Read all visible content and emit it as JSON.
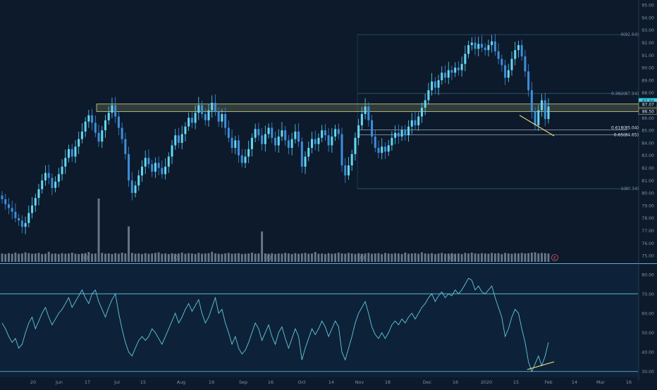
{
  "colors": {
    "background": "#0c1a2c",
    "rsi_panel_bg": "#0d2238",
    "candle": "#3d8dd9",
    "candle_bright": "#63d6f2",
    "volume": "#b7c9dd",
    "grid_line": "#5fb0d4",
    "zone_line": "#d7d783",
    "trend_line": "#e8d27a",
    "rsi_line": "#63c7e0",
    "axis_text": "#7f93a8",
    "axis_text_bright": "#d9e2ec",
    "price_badge": "#33d2ef",
    "earnings_marker": "#e05b6b"
  },
  "chart_data": [
    {
      "type": "candlestick",
      "x_ticks": [
        "20",
        "Jun",
        "17",
        "Jul",
        "15",
        "Aug",
        "19",
        "Sep",
        "16",
        "Oct",
        "14",
        "Nov",
        "18",
        "Dec",
        "16",
        "2020",
        "15",
        "Feb",
        "14",
        "Mar",
        "16"
      ],
      "y_ticks": [
        "95.00",
        "94.00",
        "93.00",
        "92.00",
        "91.00",
        "90.00",
        "89.00",
        "88.00",
        "87.00",
        "86.00",
        "85.00",
        "84.00",
        "83.00",
        "82.00",
        "81.00",
        "80.00",
        "79.00",
        "78.00",
        "77.00",
        "76.00",
        "75.00"
      ],
      "ylim": [
        74.5,
        95.4
      ],
      "price_badges": [
        {
          "label": "87.34",
          "value": 87.34
        },
        {
          "label": "87.07",
          "value": 87.07
        },
        {
          "label": "86.50",
          "value": 86.5
        }
      ],
      "resistance_zone": {
        "low": 86.5,
        "high": 87.1
      },
      "fibonacci": [
        {
          "label": "0(92.64)",
          "value": 92.64
        },
        {
          "label": "0.382(87.94)",
          "value": 87.94
        },
        {
          "label": "0.618(85.04)",
          "value": 85.04
        },
        {
          "label": "0.65(84.65)",
          "value": 84.65
        },
        {
          "label": "1(80.34)",
          "value": 80.34
        }
      ],
      "earnings_markers": [
        "E",
        "E",
        "E",
        "E",
        "E"
      ],
      "earnings_next": "E",
      "closes": [
        79.5,
        79.1,
        78.8,
        78.5,
        78.0,
        77.8,
        77.3,
        77.6,
        78.4,
        79.0,
        79.6,
        80.3,
        81.0,
        81.6,
        81.2,
        80.4,
        80.9,
        81.5,
        82.1,
        82.8,
        83.5,
        82.9,
        83.7,
        84.3,
        84.9,
        85.7,
        86.2,
        85.6,
        84.8,
        84.1,
        85.0,
        85.8,
        86.4,
        87.0,
        86.1,
        85.2,
        84.3,
        83.1,
        81.0,
        80.0,
        80.6,
        81.4,
        82.1,
        82.8,
        82.3,
        81.7,
        82.4,
        82.0,
        81.5,
        82.1,
        82.9,
        83.8,
        84.6,
        84.0,
        84.7,
        85.3,
        86.0,
        85.6,
        86.4,
        87.0,
        86.3,
        85.8,
        86.6,
        87.2,
        86.5,
        85.7,
        86.3,
        85.2,
        84.4,
        83.6,
        84.2,
        83.0,
        82.4,
        82.9,
        83.5,
        84.4,
        85.1,
        84.6,
        83.9,
        84.7,
        85.2,
        84.4,
        83.8,
        84.5,
        85.0,
        84.2,
        83.6,
        84.3,
        84.9,
        84.1,
        82.1,
        82.9,
        83.6,
        84.3,
        83.9,
        84.4,
        85.0,
        84.6,
        83.8,
        84.5,
        85.1,
        84.7,
        82.2,
        81.4,
        82.2,
        83.1,
        84.4,
        85.4,
        86.3,
        86.9,
        85.8,
        84.5,
        83.6,
        83.2,
        83.7,
        83.3,
        83.8,
        84.4,
        84.8,
        84.5,
        85.0,
        84.6,
        85.3,
        85.8,
        85.4,
        86.1,
        86.8,
        87.4,
        88.2,
        88.9,
        88.4,
        89.0,
        89.6,
        89.2,
        89.8,
        89.6,
        90.0,
        89.8,
        90.3,
        91.1,
        91.8,
        92.0,
        91.5,
        91.9,
        91.6,
        91.4,
        91.8,
        92.1,
        91.3,
        90.7,
        90.2,
        89.2,
        89.8,
        90.7,
        91.4,
        91.8,
        90.9,
        89.7,
        88.2,
        86.5,
        85.4,
        86.6,
        87.4,
        85.9,
        86.9
      ],
      "volumes": [
        1.0,
        0.8,
        1.1,
        0.9,
        1.3,
        0.9,
        1.0,
        1.4,
        1.1,
        0.9,
        1.0,
        1.2,
        0.8,
        0.9,
        1.6,
        0.9,
        1.0,
        0.8,
        1.1,
        0.9,
        1.0,
        1.3,
        0.9,
        0.8,
        1.0,
        1.1,
        1.5,
        0.9,
        1.0,
        5.0,
        1.2,
        0.9,
        1.0,
        0.8,
        1.1,
        0.9,
        1.3,
        1.0,
        2.8,
        1.2,
        0.9,
        1.0,
        0.8,
        1.1,
        0.9,
        1.0,
        1.2,
        1.4,
        0.9,
        1.0,
        0.8,
        1.1,
        0.9,
        1.0,
        1.3,
        0.9,
        1.1,
        1.0,
        0.8,
        1.2,
        0.9,
        1.0,
        1.1,
        1.6,
        1.0,
        0.9,
        0.8,
        1.0,
        1.2,
        0.9,
        1.0,
        1.1,
        0.8,
        0.9,
        1.0,
        1.3,
        0.9,
        1.0,
        2.4,
        1.0,
        0.9,
        1.1,
        0.8,
        1.0,
        0.9,
        1.2,
        1.0,
        0.8,
        1.1,
        0.9,
        1.0,
        1.2,
        0.9,
        1.0,
        1.5,
        0.9,
        1.0,
        0.8,
        1.1,
        0.9,
        1.0,
        1.3,
        1.0,
        0.9,
        1.2,
        1.0,
        0.8,
        1.1,
        0.9,
        1.0,
        1.2,
        0.9,
        1.0,
        1.1,
        0.8,
        1.2,
        1.0,
        0.9,
        1.1,
        1.0,
        0.8,
        1.3,
        0.9,
        1.0,
        1.1,
        0.9,
        1.4,
        1.0,
        0.9,
        1.1,
        0.8,
        1.0,
        1.2,
        0.9,
        1.0,
        1.1,
        0.9,
        1.0,
        0.8,
        1.2,
        1.0,
        1.3,
        1.0,
        0.9,
        1.1,
        1.0,
        0.9,
        1.2,
        1.0,
        1.1,
        0.8,
        1.2,
        1.0,
        0.9,
        1.1,
        1.0,
        1.2,
        1.0,
        1.1,
        1.3,
        1.4,
        1.0,
        1.2,
        1.1,
        1.0
      ]
    },
    {
      "type": "line",
      "y_ticks": [
        "80.00",
        "70.00",
        "60.00",
        "50.00",
        "40.00",
        "30.00"
      ],
      "ylim": [
        27,
        85
      ],
      "overbought": 70,
      "oversold": 30,
      "values": [
        55,
        52,
        48,
        45,
        47,
        42,
        44,
        50,
        55,
        58,
        52,
        56,
        60,
        63,
        58,
        54,
        57,
        60,
        62,
        65,
        68,
        63,
        66,
        69,
        72,
        68,
        65,
        70,
        72,
        66,
        62,
        58,
        63,
        67,
        70,
        60,
        52,
        45,
        40,
        38,
        42,
        46,
        48,
        46,
        48,
        52,
        50,
        47,
        44,
        48,
        52,
        56,
        60,
        55,
        58,
        62,
        65,
        61,
        64,
        67,
        60,
        55,
        58,
        63,
        68,
        60,
        62,
        55,
        50,
        44,
        48,
        42,
        39,
        41,
        45,
        50,
        55,
        52,
        46,
        50,
        54,
        48,
        44,
        50,
        53,
        47,
        42,
        47,
        52,
        48,
        36,
        42,
        47,
        52,
        49,
        52,
        56,
        53,
        48,
        52,
        56,
        53,
        40,
        36,
        42,
        48,
        55,
        60,
        63,
        66,
        60,
        53,
        49,
        47,
        50,
        47,
        50,
        54,
        56,
        54,
        57,
        55,
        58,
        60,
        57,
        60,
        63,
        65,
        68,
        70,
        66,
        69,
        71,
        68,
        70,
        69,
        72,
        70,
        72,
        75,
        78,
        77,
        72,
        74,
        71,
        70,
        72,
        74,
        68,
        63,
        58,
        48,
        52,
        58,
        62,
        60,
        52,
        45,
        35,
        30,
        34,
        38,
        33,
        38,
        45
      ],
      "divergence": {
        "from": 31,
        "to": 35
      }
    }
  ]
}
